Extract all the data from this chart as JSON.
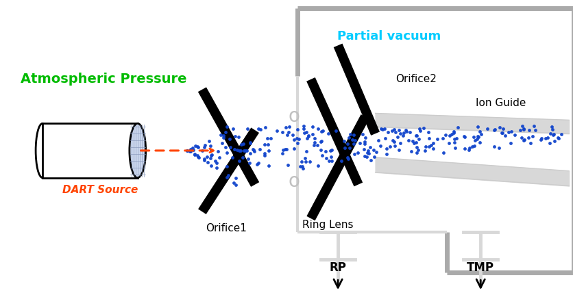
{
  "fig_width": 8.37,
  "fig_height": 4.28,
  "bg_color": "#ffffff",
  "atm_pressure_text": "Atmospheric Pressure",
  "atm_pressure_color": "#00bb00",
  "partial_vacuum_text": "Partial vacuum",
  "partial_vacuum_color": "#00ccff",
  "dart_source_text": "DART Source",
  "dart_source_color": "#ff4400",
  "orifice1_text": "Orifice1",
  "orifice2_text": "Orifice2",
  "ring_lens_text": "Ring Lens",
  "ion_guide_text": "Ion Guide",
  "rp_text": "RP",
  "tmp_text": "TMP",
  "blue_dot_color": "#1144cc",
  "black_color": "#000000",
  "gray_color": "#cccccc",
  "light_gray": "#d8d8d8",
  "wall_gray": "#aaaaaa"
}
